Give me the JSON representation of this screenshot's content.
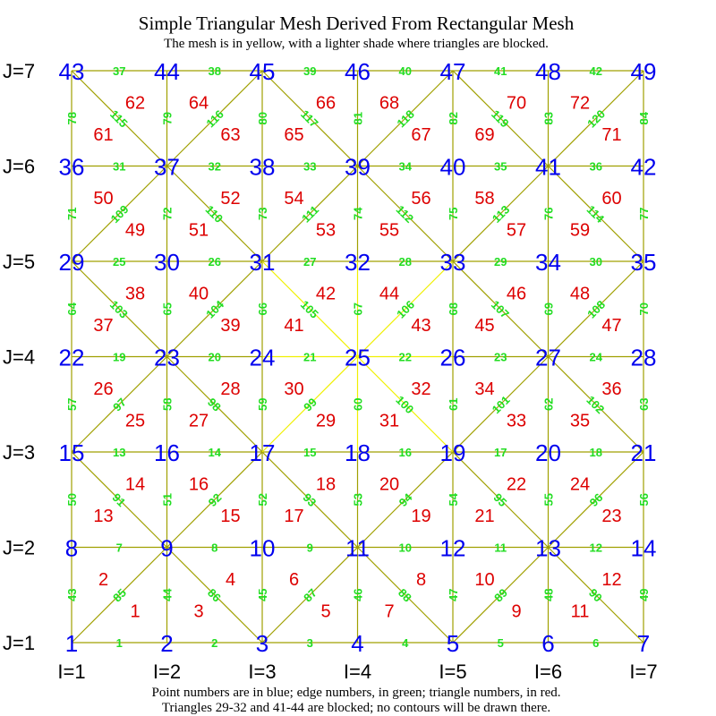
{
  "title": "Simple Triangular Mesh Derived From Rectangular Mesh",
  "subtitle": "The mesh is in yellow, with a lighter shade where triangles are blocked.",
  "footer_line1": "Point numbers are in blue; edge numbers, in green; triangle numbers, in red.",
  "footer_line2": "Triangles 29-32 and 41-44 are blocked; no contours will be drawn there.",
  "colors": {
    "mesh": "#a0a000",
    "mesh_blocked": "#f0f000",
    "point": "#0000ee",
    "edge": "#22dd22",
    "triangle": "#dd0000"
  },
  "grid": {
    "columns": 7,
    "rows": 7,
    "i_labels": [
      "I=1",
      "I=2",
      "I=3",
      "I=4",
      "I=5",
      "I=6",
      "I=7"
    ],
    "j_labels": [
      "J=1",
      "J=2",
      "J=3",
      "J=4",
      "J=5",
      "J=6",
      "J=7"
    ]
  },
  "points": [
    [
      "1",
      "2",
      "3",
      "4",
      "5",
      "6",
      "7"
    ],
    [
      "8",
      "9",
      "10",
      "11",
      "12",
      "13",
      "14"
    ],
    [
      "15",
      "16",
      "17",
      "18",
      "19",
      "20",
      "21"
    ],
    [
      "22",
      "23",
      "24",
      "25",
      "26",
      "27",
      "28"
    ],
    [
      "29",
      "30",
      "31",
      "32",
      "33",
      "34",
      "35"
    ],
    [
      "36",
      "37",
      "38",
      "39",
      "40",
      "41",
      "42"
    ],
    [
      "43",
      "44",
      "45",
      "46",
      "47",
      "48",
      "49"
    ]
  ],
  "diagonal_pattern": [
    [
      "/",
      "\\",
      "/",
      "\\",
      "/",
      "\\"
    ],
    [
      "\\",
      "/",
      "\\",
      "/",
      "\\",
      "/"
    ],
    [
      "/",
      "\\",
      "/",
      "\\",
      "/",
      "\\"
    ],
    [
      "\\",
      "/",
      "\\",
      "/",
      "\\",
      "/"
    ],
    [
      "/",
      "\\",
      "/",
      "\\",
      "/",
      "\\"
    ],
    [
      "\\",
      "/",
      "\\",
      "/",
      "\\",
      "/"
    ]
  ],
  "blocked_triangles": [
    "29",
    "30",
    "31",
    "32",
    "41",
    "42",
    "43",
    "44"
  ],
  "horizontal_edges": [
    [
      "1",
      "2",
      "3",
      "4",
      "5",
      "6"
    ],
    [
      "7",
      "8",
      "9",
      "10",
      "11",
      "12"
    ],
    [
      "13",
      "14",
      "15",
      "16",
      "17",
      "18"
    ],
    [
      "19",
      "20",
      "21",
      "22",
      "23",
      "24"
    ],
    [
      "25",
      "26",
      "27",
      "28",
      "29",
      "30"
    ],
    [
      "31",
      "32",
      "33",
      "34",
      "35",
      "36"
    ],
    [
      "37",
      "38",
      "39",
      "40",
      "41",
      "42"
    ]
  ],
  "vertical_edges": [
    [
      "43",
      "44",
      "45",
      "46",
      "47",
      "48",
      "49"
    ],
    [
      "50",
      "51",
      "52",
      "53",
      "54",
      "55",
      "56"
    ],
    [
      "57",
      "58",
      "59",
      "60",
      "61",
      "62",
      "63"
    ],
    [
      "64",
      "65",
      "66",
      "67",
      "68",
      "69",
      "70"
    ],
    [
      "71",
      "72",
      "73",
      "74",
      "75",
      "76",
      "77"
    ],
    [
      "78",
      "79",
      "80",
      "81",
      "82",
      "83",
      "84"
    ]
  ],
  "diagonal_edges": [
    [
      "85",
      "86",
      "87",
      "88",
      "89",
      "90"
    ],
    [
      "91",
      "92",
      "93",
      "94",
      "95",
      "96"
    ],
    [
      "97",
      "98",
      "99",
      "100",
      "101",
      "102"
    ],
    [
      "103",
      "104",
      "105",
      "106",
      "107",
      "108"
    ],
    [
      "109",
      "110",
      "111",
      "112",
      "113",
      "114"
    ],
    [
      "115",
      "116",
      "117",
      "118",
      "119",
      "120"
    ]
  ],
  "triangles": [
    [
      [
        "1",
        "2"
      ],
      [
        "3",
        "4"
      ],
      [
        "5",
        "6"
      ],
      [
        "7",
        "8"
      ],
      [
        "9",
        "10"
      ],
      [
        "11",
        "12"
      ]
    ],
    [
      [
        "13",
        "14"
      ],
      [
        "15",
        "16"
      ],
      [
        "17",
        "18"
      ],
      [
        "19",
        "20"
      ],
      [
        "21",
        "22"
      ],
      [
        "23",
        "24"
      ]
    ],
    [
      [
        "25",
        "26"
      ],
      [
        "27",
        "28"
      ],
      [
        "29",
        "30"
      ],
      [
        "31",
        "32"
      ],
      [
        "33",
        "34"
      ],
      [
        "35",
        "36"
      ]
    ],
    [
      [
        "37",
        "38"
      ],
      [
        "39",
        "40"
      ],
      [
        "41",
        "42"
      ],
      [
        "43",
        "44"
      ],
      [
        "45",
        "46"
      ],
      [
        "47",
        "48"
      ]
    ],
    [
      [
        "49",
        "50"
      ],
      [
        "51",
        "52"
      ],
      [
        "53",
        "54"
      ],
      [
        "55",
        "56"
      ],
      [
        "57",
        "58"
      ],
      [
        "59",
        "60"
      ]
    ],
    [
      [
        "61",
        "62"
      ],
      [
        "63",
        "64"
      ],
      [
        "65",
        "66"
      ],
      [
        "67",
        "68"
      ],
      [
        "69",
        "70"
      ],
      [
        "71",
        "72"
      ]
    ]
  ]
}
